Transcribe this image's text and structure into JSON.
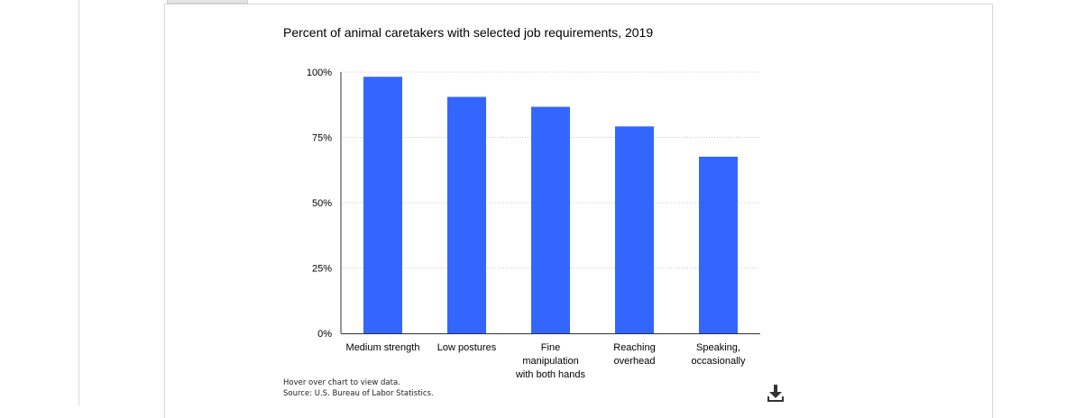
{
  "chart_data": {
    "type": "bar",
    "title": "Percent of animal caretakers with selected job requirements, 2019",
    "categories": [
      [
        "Medium strength"
      ],
      [
        "Low postures"
      ],
      [
        "Fine",
        "manipulation",
        "with both hands"
      ],
      [
        "Reaching",
        "overhead"
      ],
      [
        "Speaking,",
        "occasionally"
      ]
    ],
    "values": [
      98.2,
      90.5,
      86.7,
      79.2,
      67.6
    ],
    "ylim": [
      0,
      100
    ],
    "yticks": [
      {
        "value": 0,
        "label": "0%"
      },
      {
        "value": 25,
        "label": "25%"
      },
      {
        "value": 50,
        "label": "50%"
      },
      {
        "value": 75,
        "label": "75%"
      },
      {
        "value": 100,
        "label": "100%"
      }
    ],
    "grid": true,
    "bar_color": "#3366ff",
    "xlabel": "",
    "ylabel": ""
  },
  "notes": {
    "hover": "Hover over chart to view data.",
    "source": "Source: U.S. Bureau of Labor Statistics."
  },
  "controls": {
    "download_icon": "download-icon"
  }
}
